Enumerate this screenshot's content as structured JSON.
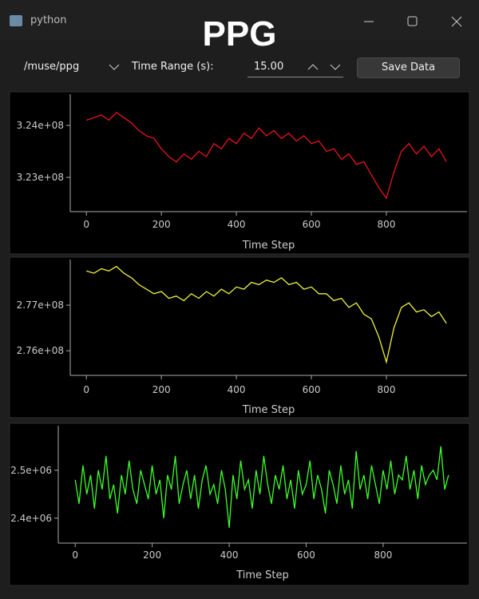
{
  "window": {
    "title": "python"
  },
  "overlay_title": "PPG",
  "toolbar": {
    "topic": "/muse/ppg",
    "range_label": "Time Range (s):",
    "range_value": "15.00",
    "save_button": "Save Data"
  },
  "chart_data": [
    {
      "type": "line",
      "xlabel": "Time Step",
      "xlim": [
        -43,
        1015
      ],
      "ylim": [
        322340000,
        324600000
      ],
      "xticks": [
        0,
        200,
        400,
        600,
        800
      ],
      "yticks": [
        {
          "value": 323000000,
          "label": "3.23e+08"
        },
        {
          "value": 324000000,
          "label": "3.24e+08"
        }
      ],
      "x": [
        0,
        20,
        40,
        60,
        80,
        100,
        120,
        140,
        160,
        180,
        200,
        220,
        240,
        260,
        280,
        300,
        320,
        340,
        360,
        380,
        400,
        420,
        440,
        460,
        480,
        500,
        520,
        540,
        560,
        580,
        600,
        620,
        640,
        660,
        680,
        700,
        720,
        740,
        760,
        780,
        800,
        820,
        840,
        860,
        880,
        900,
        920,
        940,
        960
      ],
      "series": [
        {
          "color": "#e8141e",
          "values": [
            324100000,
            324150000,
            324200000,
            324100000,
            324250000,
            324150000,
            324050000,
            323900000,
            323800000,
            323750000,
            323550000,
            323400000,
            323300000,
            323450000,
            323350000,
            323500000,
            323400000,
            323650000,
            323550000,
            323750000,
            323650000,
            323850000,
            323750000,
            323950000,
            323800000,
            323900000,
            323750000,
            323850000,
            323700000,
            323800000,
            323650000,
            323700000,
            323500000,
            323550000,
            323350000,
            323450000,
            323250000,
            323300000,
            323050000,
            322800000,
            322600000,
            323100000,
            323500000,
            323650000,
            323450000,
            323600000,
            323400000,
            323550000,
            323300000
          ]
        }
      ]
    },
    {
      "type": "line",
      "xlabel": "Time Step",
      "xlim": [
        -43,
        1015
      ],
      "ylim": [
        275460000,
        278000000
      ],
      "xticks": [
        0,
        200,
        400,
        600,
        800
      ],
      "yticks": [
        {
          "value": 276000000,
          "label": "2.76e+08"
        },
        {
          "value": 277000000,
          "label": "2.77e+08"
        }
      ],
      "x": [
        0,
        20,
        40,
        60,
        80,
        100,
        120,
        140,
        160,
        180,
        200,
        220,
        240,
        260,
        280,
        300,
        320,
        340,
        360,
        380,
        400,
        420,
        440,
        460,
        480,
        500,
        520,
        540,
        560,
        580,
        600,
        620,
        640,
        660,
        680,
        700,
        720,
        740,
        760,
        780,
        800,
        820,
        840,
        860,
        880,
        900,
        920,
        940,
        960
      ],
      "series": [
        {
          "color": "#f0f03c",
          "values": [
            277750000,
            277700000,
            277800000,
            277750000,
            277850000,
            277700000,
            277600000,
            277450000,
            277350000,
            277250000,
            277300000,
            277150000,
            277200000,
            277100000,
            277250000,
            277150000,
            277300000,
            277200000,
            277350000,
            277250000,
            277400000,
            277350000,
            277500000,
            277450000,
            277550000,
            277500000,
            277600000,
            277450000,
            277500000,
            277350000,
            277400000,
            277250000,
            277250000,
            277100000,
            277150000,
            276950000,
            277050000,
            276800000,
            276700000,
            276300000,
            275750000,
            276500000,
            276950000,
            277050000,
            276850000,
            276900000,
            276750000,
            276850000,
            276600000
          ]
        }
      ]
    },
    {
      "type": "line",
      "xlabel": "Time Step",
      "xlim": [
        -44,
        1018
      ],
      "ylim": [
        2348000,
        2593000
      ],
      "xticks": [
        0,
        200,
        400,
        600,
        800
      ],
      "yticks": [
        {
          "value": 2400000,
          "label": "2.4e+06"
        },
        {
          "value": 2500000,
          "label": "2.5e+06"
        }
      ],
      "x": [
        0,
        10,
        20,
        30,
        40,
        50,
        60,
        70,
        80,
        90,
        100,
        110,
        120,
        130,
        140,
        150,
        160,
        170,
        180,
        190,
        200,
        210,
        220,
        230,
        240,
        250,
        260,
        270,
        280,
        290,
        300,
        310,
        320,
        330,
        340,
        350,
        360,
        370,
        380,
        390,
        400,
        410,
        420,
        430,
        440,
        450,
        460,
        470,
        480,
        490,
        500,
        510,
        520,
        530,
        540,
        550,
        560,
        570,
        580,
        590,
        600,
        610,
        620,
        630,
        640,
        650,
        660,
        670,
        680,
        690,
        700,
        710,
        720,
        730,
        740,
        750,
        760,
        770,
        780,
        790,
        800,
        810,
        820,
        830,
        840,
        850,
        860,
        870,
        880,
        890,
        900,
        910,
        920,
        930,
        940,
        950,
        960,
        970
      ],
      "series": [
        {
          "color": "#3cff28",
          "values": [
            2480000,
            2430000,
            2510000,
            2450000,
            2490000,
            2420000,
            2500000,
            2460000,
            2530000,
            2440000,
            2470000,
            2410000,
            2490000,
            2450000,
            2520000,
            2460000,
            2430000,
            2500000,
            2470000,
            2440000,
            2510000,
            2450000,
            2480000,
            2400000,
            2490000,
            2460000,
            2530000,
            2430000,
            2470000,
            2500000,
            2440000,
            2490000,
            2420000,
            2480000,
            2510000,
            2450000,
            2470000,
            2430000,
            2500000,
            2460000,
            2380000,
            2490000,
            2440000,
            2520000,
            2460000,
            2480000,
            2420000,
            2500000,
            2450000,
            2530000,
            2470000,
            2430000,
            2490000,
            2460000,
            2510000,
            2440000,
            2480000,
            2420000,
            2500000,
            2450000,
            2470000,
            2520000,
            2440000,
            2490000,
            2460000,
            2410000,
            2500000,
            2470000,
            2430000,
            2510000,
            2450000,
            2480000,
            2420000,
            2540000,
            2460000,
            2490000,
            2440000,
            2510000,
            2470000,
            2430000,
            2500000,
            2460000,
            2520000,
            2450000,
            2490000,
            2480000,
            2530000,
            2460000,
            2500000,
            2440000,
            2510000,
            2470000,
            2490000,
            2500000,
            2480000,
            2550000,
            2460000,
            2490000
          ]
        }
      ]
    }
  ]
}
